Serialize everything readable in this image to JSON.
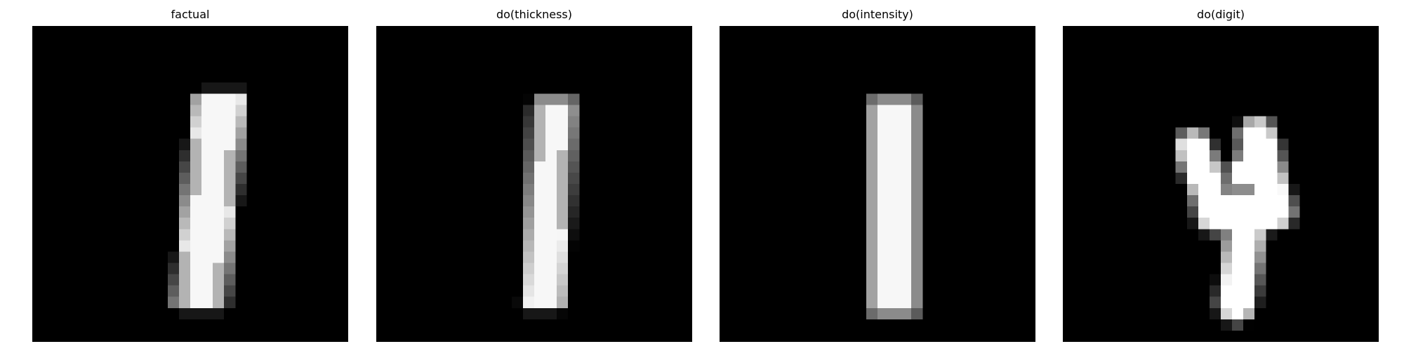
{
  "figure": {
    "background_color": "#ffffff",
    "image_background_color": "#000000",
    "panels": [
      {
        "title": "factual",
        "stroke": {
          "type": "bar",
          "x0": 14.0,
          "x1": 17.5,
          "y0": 6.5,
          "y1": 24.5,
          "shear": 0.1
        }
      },
      {
        "title": "do(thickness)",
        "stroke": {
          "type": "bar",
          "x0": 14.0,
          "x1": 16.6,
          "y0": 7.0,
          "y1": 24.5,
          "shear": 0.05
        }
      },
      {
        "title": "do(intensity)",
        "stroke": {
          "type": "bar",
          "x0": 13.9,
          "x1": 17.0,
          "y0": 7.0,
          "y1": 25.0,
          "shear": 0.0
        }
      },
      {
        "title": "do(digit)",
        "stroke": {
          "type": "four"
        }
      }
    ]
  }
}
